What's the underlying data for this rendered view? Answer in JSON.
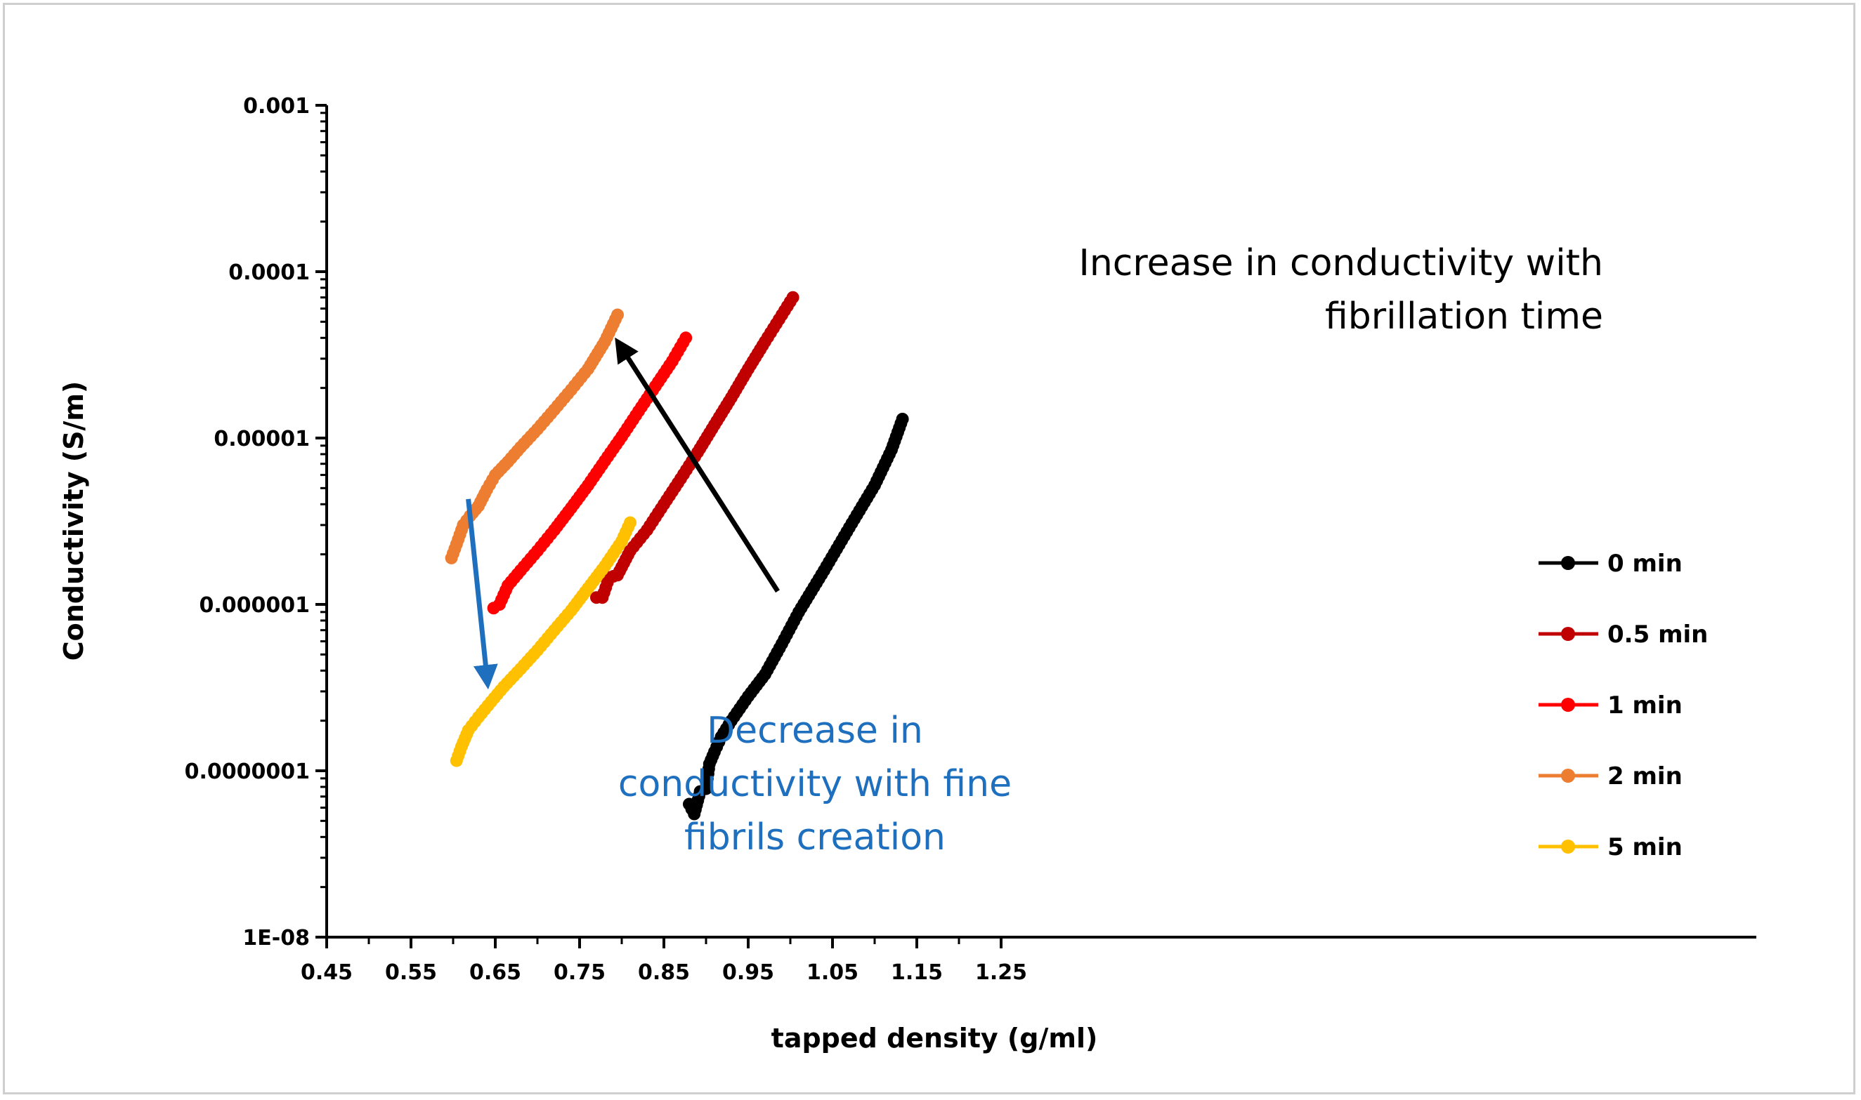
{
  "chart_data": {
    "type": "scatter",
    "xlabel": "tapped density (g/ml)",
    "ylabel": "Conductivity (S/m)",
    "xlim": [
      0.45,
      1.3
    ],
    "ylim": [
      1e-08,
      0.001
    ],
    "yscale": "log",
    "x_ticks": [
      "0.45",
      "0.55",
      "0.65",
      "0.75",
      "0.85",
      "0.95",
      "1.05",
      "1.15",
      "1.25"
    ],
    "x_tick_values": [
      0.45,
      0.55,
      0.65,
      0.75,
      0.85,
      0.95,
      1.05,
      1.15,
      1.25
    ],
    "y_ticks": [
      "1E-08",
      "0.0000001",
      "0.000001",
      "0.00001",
      "0.0001",
      "0.001"
    ],
    "y_tick_values": [
      1e-08,
      1e-07,
      1e-06,
      1e-05,
      0.0001,
      0.001
    ],
    "grid": false,
    "legend_position": "right",
    "series": [
      {
        "name": "0 min",
        "color": "#000000",
        "x": [
          0.88,
          0.886,
          0.893,
          0.9,
          0.904,
          0.91,
          0.918,
          0.93,
          0.95,
          0.97,
          0.99,
          1.01,
          1.04,
          1.07,
          1.1,
          1.12,
          1.133
        ],
        "y": [
          6.3e-08,
          5.5e-08,
          7.5e-08,
          7.8e-08,
          1.1e-07,
          1.3e-07,
          1.6e-07,
          2e-07,
          2.8e-07,
          3.8e-07,
          5.8e-07,
          9e-07,
          1.6e-06,
          2.9e-06,
          5.2e-06,
          8.5e-06,
          1.3e-05
        ]
      },
      {
        "name": "0.5 min",
        "color": "#c00000",
        "x": [
          0.77,
          0.777,
          0.785,
          0.795,
          0.81,
          0.83,
          0.85,
          0.87,
          0.89,
          0.91,
          0.93,
          0.95,
          0.97,
          0.99,
          1.003
        ],
        "y": [
          1.1e-06,
          1.1e-06,
          1.45e-06,
          1.5e-06,
          2.1e-06,
          2.8e-06,
          4e-06,
          5.7e-06,
          8.2e-06,
          1.2e-05,
          1.75e-05,
          2.6e-05,
          3.8e-05,
          5.5e-05,
          7e-05
        ]
      },
      {
        "name": "1 min",
        "color": "#ff0000",
        "x": [
          0.648,
          0.655,
          0.665,
          0.68,
          0.7,
          0.72,
          0.74,
          0.76,
          0.78,
          0.8,
          0.82,
          0.84,
          0.86,
          0.876
        ],
        "y": [
          9.5e-07,
          1e-06,
          1.3e-06,
          1.6e-06,
          2.1e-06,
          2.8e-06,
          3.8e-06,
          5.2e-06,
          7.3e-06,
          1.02e-05,
          1.45e-05,
          2.05e-05,
          2.9e-05,
          4e-05
        ]
      },
      {
        "name": "2 min",
        "color": "#ed7d31",
        "x": [
          0.598,
          0.604,
          0.612,
          0.62,
          0.63,
          0.64,
          0.65,
          0.665,
          0.68,
          0.7,
          0.72,
          0.74,
          0.76,
          0.78,
          0.795
        ],
        "y": [
          1.9e-06,
          2.3e-06,
          3e-06,
          3.4e-06,
          3.9e-06,
          4.9e-06,
          6e-06,
          7.2e-06,
          8.8e-06,
          1.13e-05,
          1.48e-05,
          1.95e-05,
          2.6e-05,
          3.8e-05,
          5.5e-05
        ]
      },
      {
        "name": "5 min",
        "color": "#ffc000",
        "x": [
          0.604,
          0.61,
          0.618,
          0.63,
          0.645,
          0.66,
          0.68,
          0.7,
          0.72,
          0.74,
          0.76,
          0.78,
          0.8,
          0.81
        ],
        "y": [
          1.15e-07,
          1.4e-07,
          1.75e-07,
          2.1e-07,
          2.6e-07,
          3.2e-07,
          4.1e-07,
          5.3e-07,
          7e-07,
          9.2e-07,
          1.25e-06,
          1.7e-06,
          2.4e-06,
          3.1e-06
        ]
      }
    ],
    "annotations": [
      {
        "lines": [
          "Increase in conductivity with",
          "fibrillation time"
        ],
        "color": "#000000",
        "arrow_from": [
          0.985,
          1.2e-06
        ],
        "arrow_to": [
          0.795,
          3.8e-05
        ]
      },
      {
        "lines": [
          "Decrease in",
          "conductivity with fine",
          "fibrils creation"
        ],
        "color": "#1f6fbf",
        "arrow_from": [
          0.618,
          4.3e-06
        ],
        "arrow_to": [
          0.641,
          3.3e-07
        ]
      }
    ]
  }
}
